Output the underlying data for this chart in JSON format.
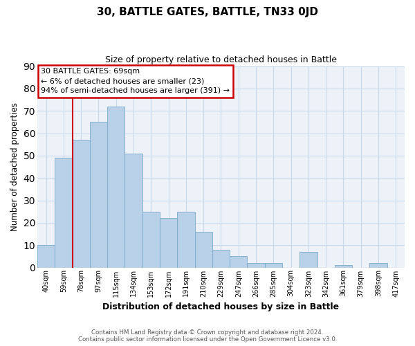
{
  "title": "30, BATTLE GATES, BATTLE, TN33 0JD",
  "subtitle": "Size of property relative to detached houses in Battle",
  "xlabel": "Distribution of detached houses by size in Battle",
  "ylabel": "Number of detached properties",
  "footer_line1": "Contains HM Land Registry data © Crown copyright and database right 2024.",
  "footer_line2": "Contains public sector information licensed under the Open Government Licence v3.0.",
  "bin_labels": [
    "40sqm",
    "59sqm",
    "78sqm",
    "97sqm",
    "115sqm",
    "134sqm",
    "153sqm",
    "172sqm",
    "191sqm",
    "210sqm",
    "229sqm",
    "247sqm",
    "266sqm",
    "285sqm",
    "304sqm",
    "323sqm",
    "342sqm",
    "361sqm",
    "379sqm",
    "398sqm",
    "417sqm"
  ],
  "bar_values": [
    10,
    49,
    57,
    65,
    72,
    51,
    25,
    22,
    25,
    16,
    8,
    5,
    2,
    2,
    0,
    7,
    0,
    1,
    0,
    2,
    0
  ],
  "bar_color": "#b8d0e8",
  "bar_edge_color": "#7aaac8",
  "ylim": [
    0,
    90
  ],
  "yticks": [
    0,
    10,
    20,
    30,
    40,
    50,
    60,
    70,
    80,
    90
  ],
  "annotation_line1": "30 BATTLE GATES: 69sqm",
  "annotation_line2": "← 6% of detached houses are smaller (23)",
  "annotation_line3": "94% of semi-detached houses are larger (391) →",
  "annotation_box_color": "#ffffff",
  "annotation_box_edge_color": "#cc0000",
  "red_line_color": "#cc0000",
  "grid_color": "#c8d8e8",
  "background_color": "#ffffff",
  "plot_bg_color": "#edf2f8"
}
